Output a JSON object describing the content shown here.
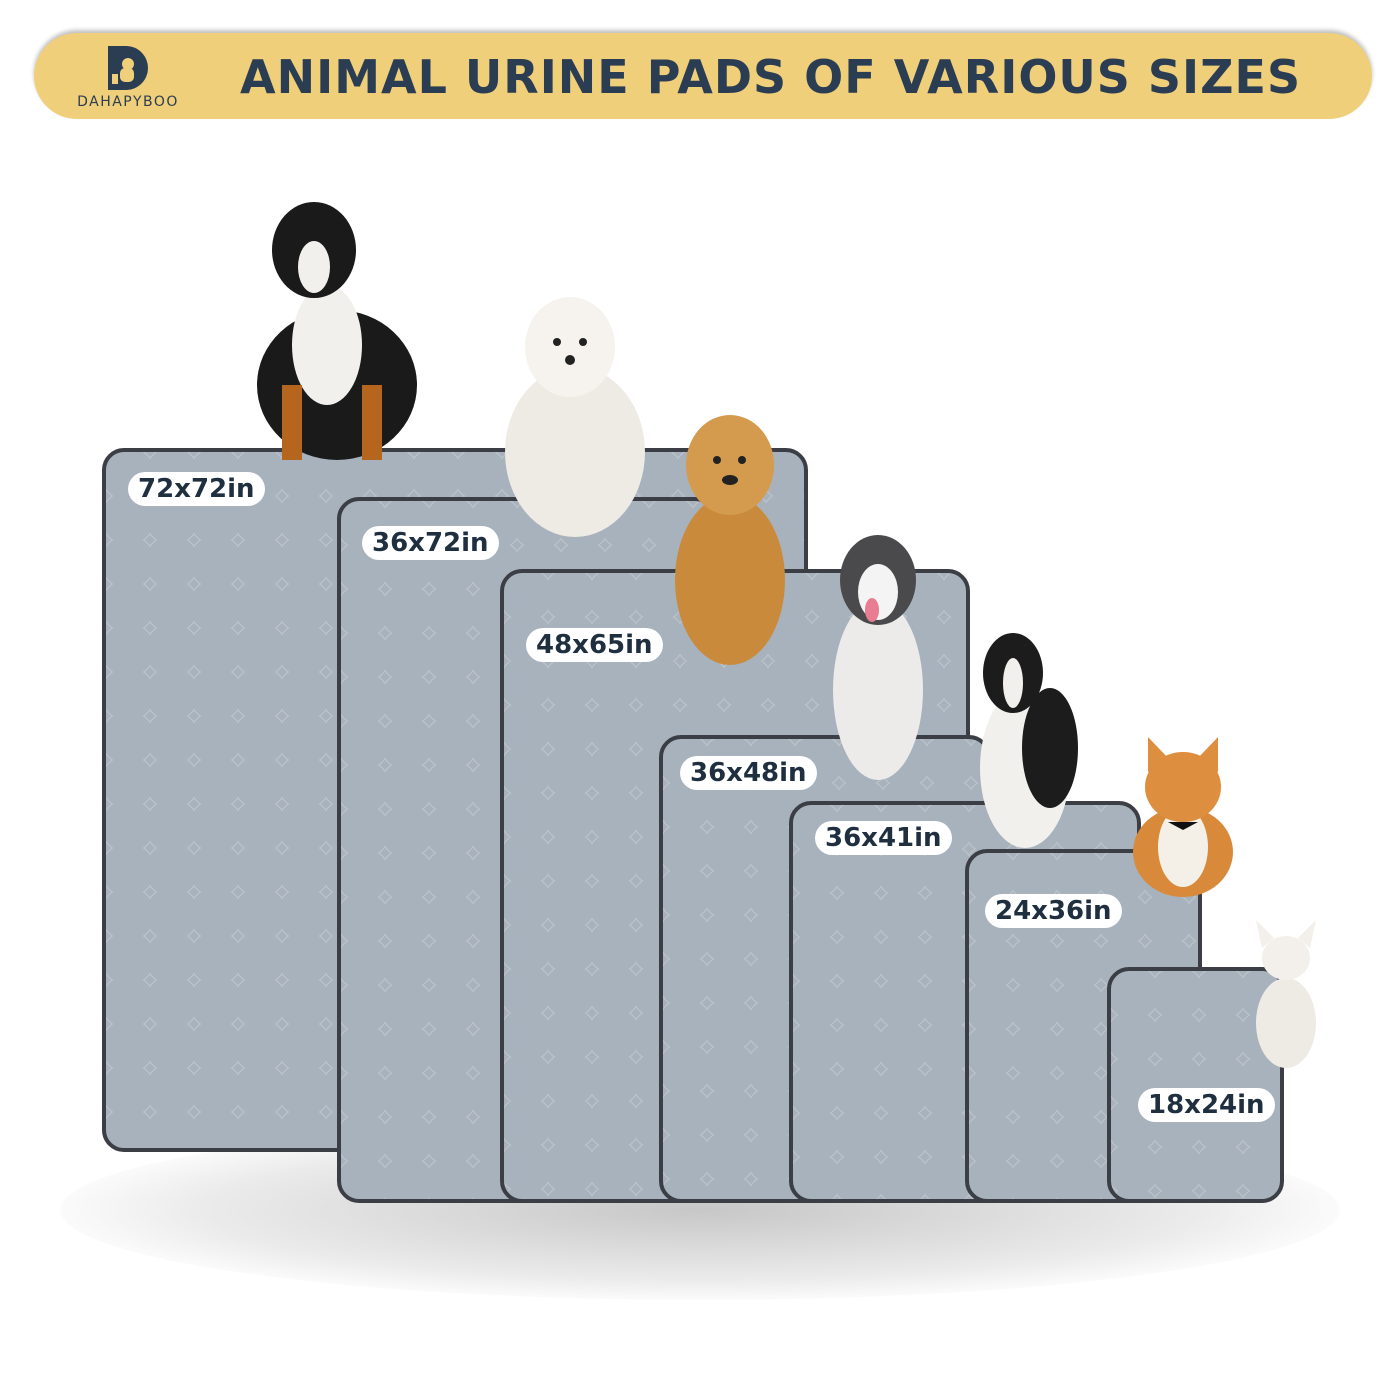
{
  "header": {
    "brand": "DAHAPYBOO",
    "title": "ANIMAL URINE PADS OF VARIOUS SIZES"
  },
  "colors": {
    "banner": "#f0cf7a",
    "text": "#2b3d52",
    "pad": "#a8b2bc",
    "pad_border": "#3b3e44"
  },
  "pads": [
    {
      "size": "72x72in"
    },
    {
      "size": "36x72in"
    },
    {
      "size": "48x65in"
    },
    {
      "size": "36x48in"
    },
    {
      "size": "36x41in"
    },
    {
      "size": "24x36in"
    },
    {
      "size": "18x24in"
    }
  ]
}
